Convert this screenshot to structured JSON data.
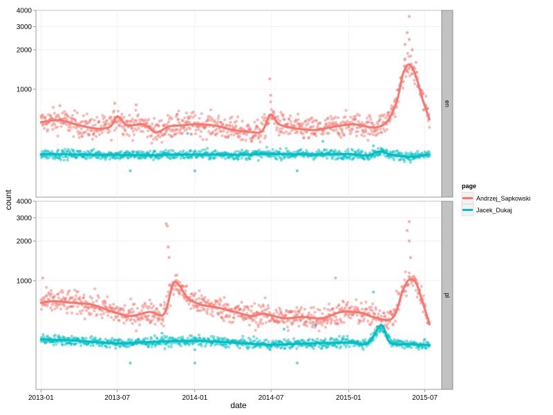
{
  "chart_data": {
    "type": "scatter",
    "xlabel": "date",
    "ylabel": "count",
    "y_scale": "log10",
    "x_range": [
      "2012-12-20",
      "2015-08-10"
    ],
    "x_ticks": [
      "2013-01",
      "2013-07",
      "2014-01",
      "2014-07",
      "2015-01",
      "2015-07"
    ],
    "y_ticks": [
      "1000",
      "2000",
      "3000",
      "4000"
    ],
    "ylim": [
      150,
      4000
    ],
    "legend": {
      "title": "page",
      "position": "right",
      "entries": [
        {
          "name": "Andrzej_Sapkowski",
          "color": "#F8766D"
        },
        {
          "name": "Jacek_Dukaj",
          "color": "#00BFC4"
        }
      ]
    },
    "facets": [
      {
        "name": "en",
        "series": [
          {
            "name": "Andrzej_Sapkowski",
            "color": "#F8766D",
            "smooth": [
              [
                "2013-01-01",
                560
              ],
              [
                "2013-02-15",
                580
              ],
              [
                "2013-04-01",
                530
              ],
              [
                "2013-05-15",
                500
              ],
              [
                "2013-06-15",
                520
              ],
              [
                "2013-07-01",
                620
              ],
              [
                "2013-07-25",
                530
              ],
              [
                "2013-09-01",
                540
              ],
              [
                "2013-10-01",
                470
              ],
              [
                "2013-11-01",
                520
              ],
              [
                "2013-12-01",
                530
              ],
              [
                "2014-01-01",
                540
              ],
              [
                "2014-02-15",
                530
              ],
              [
                "2014-04-01",
                490
              ],
              [
                "2014-05-15",
                470
              ],
              [
                "2014-06-10",
                480
              ],
              [
                "2014-06-30",
                640
              ],
              [
                "2014-07-20",
                540
              ],
              [
                "2014-09-01",
                500
              ],
              [
                "2014-10-15",
                490
              ],
              [
                "2014-12-01",
                520
              ],
              [
                "2015-01-15",
                540
              ],
              [
                "2015-03-01",
                510
              ],
              [
                "2015-04-01",
                560
              ],
              [
                "2015-04-25",
                800
              ],
              [
                "2015-05-10",
                1300
              ],
              [
                "2015-05-25",
                1550
              ],
              [
                "2015-06-10",
                1250
              ],
              [
                "2015-06-25",
                850
              ],
              [
                "2015-07-12",
                590
              ]
            ],
            "outliers": [
              [
                "2013-02-15",
                750
              ],
              [
                "2013-06-25",
                780
              ],
              [
                "2013-08-15",
                760
              ],
              [
                "2013-11-20",
                640
              ],
              [
                "2014-06-28",
                1200
              ],
              [
                "2014-06-30",
                900
              ],
              [
                "2015-05-25",
                3600
              ],
              [
                "2015-05-20",
                2700
              ],
              [
                "2015-05-25",
                2400
              ],
              [
                "2015-05-15",
                2200
              ],
              [
                "2015-06-01",
                2000
              ],
              [
                "2015-06-10",
                1600
              ]
            ]
          },
          {
            "name": "Jacek_Dukaj",
            "color": "#00BFC4",
            "smooth": [
              [
                "2013-01-01",
                320
              ],
              [
                "2013-04-01",
                318
              ],
              [
                "2013-07-01",
                315
              ],
              [
                "2013-10-01",
                314
              ],
              [
                "2014-01-01",
                318
              ],
              [
                "2014-04-01",
                316
              ],
              [
                "2014-07-01",
                320
              ],
              [
                "2014-10-01",
                318
              ],
              [
                "2015-01-01",
                320
              ],
              [
                "2015-02-15",
                312
              ],
              [
                "2015-03-15",
                335
              ],
              [
                "2015-04-15",
                315
              ],
              [
                "2015-06-01",
                305
              ],
              [
                "2015-07-12",
                318
              ]
            ],
            "outliers": [
              [
                "2013-08-01",
                238
              ],
              [
                "2014-01-01",
                238
              ],
              [
                "2014-09-01",
                238
              ],
              [
                "2015-03-01",
                370
              ],
              [
                "2013-12-15",
                460
              ],
              [
                "2014-11-01",
                400
              ]
            ]
          }
        ]
      },
      {
        "name": "pl",
        "series": [
          {
            "name": "Andrzej_Sapkowski",
            "color": "#F8766D",
            "smooth": [
              [
                "2013-01-01",
                680
              ],
              [
                "2013-02-01",
                700
              ],
              [
                "2013-03-15",
                680
              ],
              [
                "2013-05-01",
                660
              ],
              [
                "2013-06-15",
                590
              ],
              [
                "2013-08-01",
                540
              ],
              [
                "2013-09-15",
                580
              ],
              [
                "2013-10-20",
                560
              ],
              [
                "2013-11-10",
                940
              ],
              [
                "2013-11-25",
                920
              ],
              [
                "2013-12-15",
                740
              ],
              [
                "2014-01-15",
                660
              ],
              [
                "2014-03-01",
                620
              ],
              [
                "2014-04-15",
                570
              ],
              [
                "2014-05-15",
                540
              ],
              [
                "2014-06-15",
                560
              ],
              [
                "2014-08-01",
                520
              ],
              [
                "2014-09-15",
                530
              ],
              [
                "2014-11-01",
                520
              ],
              [
                "2014-12-15",
                580
              ],
              [
                "2015-02-01",
                570
              ],
              [
                "2015-03-01",
                530
              ],
              [
                "2015-04-15",
                520
              ],
              [
                "2015-05-10",
                850
              ],
              [
                "2015-05-25",
                1020
              ],
              [
                "2015-06-10",
                960
              ],
              [
                "2015-06-25",
                700
              ],
              [
                "2015-07-12",
                470
              ]
            ],
            "outliers": [
              [
                "2013-01-05",
                1050
              ],
              [
                "2013-10-25",
                2700
              ],
              [
                "2013-10-28",
                2600
              ],
              [
                "2013-10-30",
                1800
              ],
              [
                "2013-11-01",
                1500
              ],
              [
                "2014-12-01",
                1050
              ],
              [
                "2015-05-20",
                2400
              ],
              [
                "2015-05-25",
                2000
              ],
              [
                "2015-05-25",
                2800
              ],
              [
                "2015-05-28",
                1500
              ]
            ]
          },
          {
            "name": "Jacek_Dukaj",
            "color": "#00BFC4",
            "smooth": [
              [
                "2013-01-01",
                360
              ],
              [
                "2013-04-01",
                350
              ],
              [
                "2013-07-01",
                335
              ],
              [
                "2013-10-01",
                345
              ],
              [
                "2014-01-01",
                350
              ],
              [
                "2014-04-01",
                340
              ],
              [
                "2014-07-01",
                328
              ],
              [
                "2014-10-01",
                335
              ],
              [
                "2015-01-01",
                340
              ],
              [
                "2015-02-15",
                335
              ],
              [
                "2015-03-20",
                460
              ],
              [
                "2015-04-10",
                340
              ],
              [
                "2015-06-01",
                330
              ],
              [
                "2015-07-12",
                325
              ]
            ],
            "outliers": [
              [
                "2013-08-01",
                238
              ],
              [
                "2014-01-01",
                238
              ],
              [
                "2014-09-01",
                238
              ],
              [
                "2014-01-01",
                300
              ],
              [
                "2015-03-01",
                820
              ],
              [
                "2015-04-01",
                500
              ],
              [
                "2013-10-15",
                400
              ],
              [
                "2014-08-01",
                430
              ],
              [
                "2014-10-15",
                460
              ]
            ]
          }
        ]
      }
    ]
  }
}
